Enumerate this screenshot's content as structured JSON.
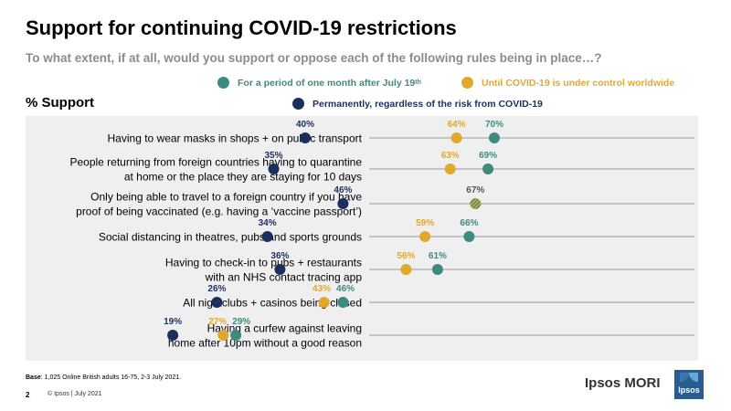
{
  "title": "Support for continuing COVID-19 restrictions",
  "subtitle": "To what extent, if at all, would you support or oppose each of the following rules being in place…?",
  "support_label": "% Support",
  "legend": {
    "month": "For a period of one month after July 19",
    "month_sup": "th",
    "control": "Until COVID-19 is under control worldwide",
    "permanent": "Permanently, regardless of the risk from COVID-19"
  },
  "colors": {
    "month": "#3f8a80",
    "control": "#e2a82b",
    "permanent": "#1b2f5e",
    "row_line": "#9a9a9a"
  },
  "chart_data": {
    "type": "scatter",
    "xlim": [
      0,
      100
    ],
    "categories": [
      [
        "Having to wear masks in shops + on public transport"
      ],
      [
        "People returning from foreign countries having to quarantine",
        "at home or the place they are staying for 10 days"
      ],
      [
        "Only being able to travel to a foreign country if you have",
        "proof of being vaccinated (e.g. having a ‘vaccine passport’)"
      ],
      [
        "Social distancing in theatres, pubs and sports grounds"
      ],
      [
        "Having to check-in to pubs + restaurants",
        "with an NHS contact tracing app"
      ],
      [
        "All nightclubs + casinos being closed"
      ],
      [
        "Having a curfew against leaving",
        "home after 10pm without a good reason"
      ]
    ],
    "series": [
      {
        "key": "permanent",
        "values": [
          40,
          35,
          46,
          34,
          36,
          26,
          19
        ]
      },
      {
        "key": "control",
        "values": [
          64,
          63,
          67,
          59,
          56,
          43,
          27
        ]
      },
      {
        "key": "month",
        "values": [
          70,
          69,
          67,
          66,
          61,
          46,
          29
        ]
      }
    ],
    "labels": [
      {
        "permanent": "40%",
        "control": "64%",
        "month": "70%"
      },
      {
        "permanent": "35%",
        "control": "63%",
        "month": "69%"
      },
      {
        "permanent": "46%",
        "merged": "67%"
      },
      {
        "permanent": "34%",
        "control": "59%",
        "month": "66%"
      },
      {
        "permanent": "36%",
        "control": "56%",
        "month": "61%"
      },
      {
        "permanent": "26%",
        "control": "43%",
        "month": "46%"
      },
      {
        "permanent": "19%",
        "control": "27%",
        "month": "29%"
      }
    ]
  },
  "footer": {
    "base_label": "Base",
    "base_text": ": 1,025 Online British adults 16-75, 2-3 July 2021.",
    "page": "2",
    "copyright": "© Ipsos | July 2021"
  },
  "brand": {
    "name": "Ipsos MORI",
    "logo_text": "Ipsos"
  }
}
